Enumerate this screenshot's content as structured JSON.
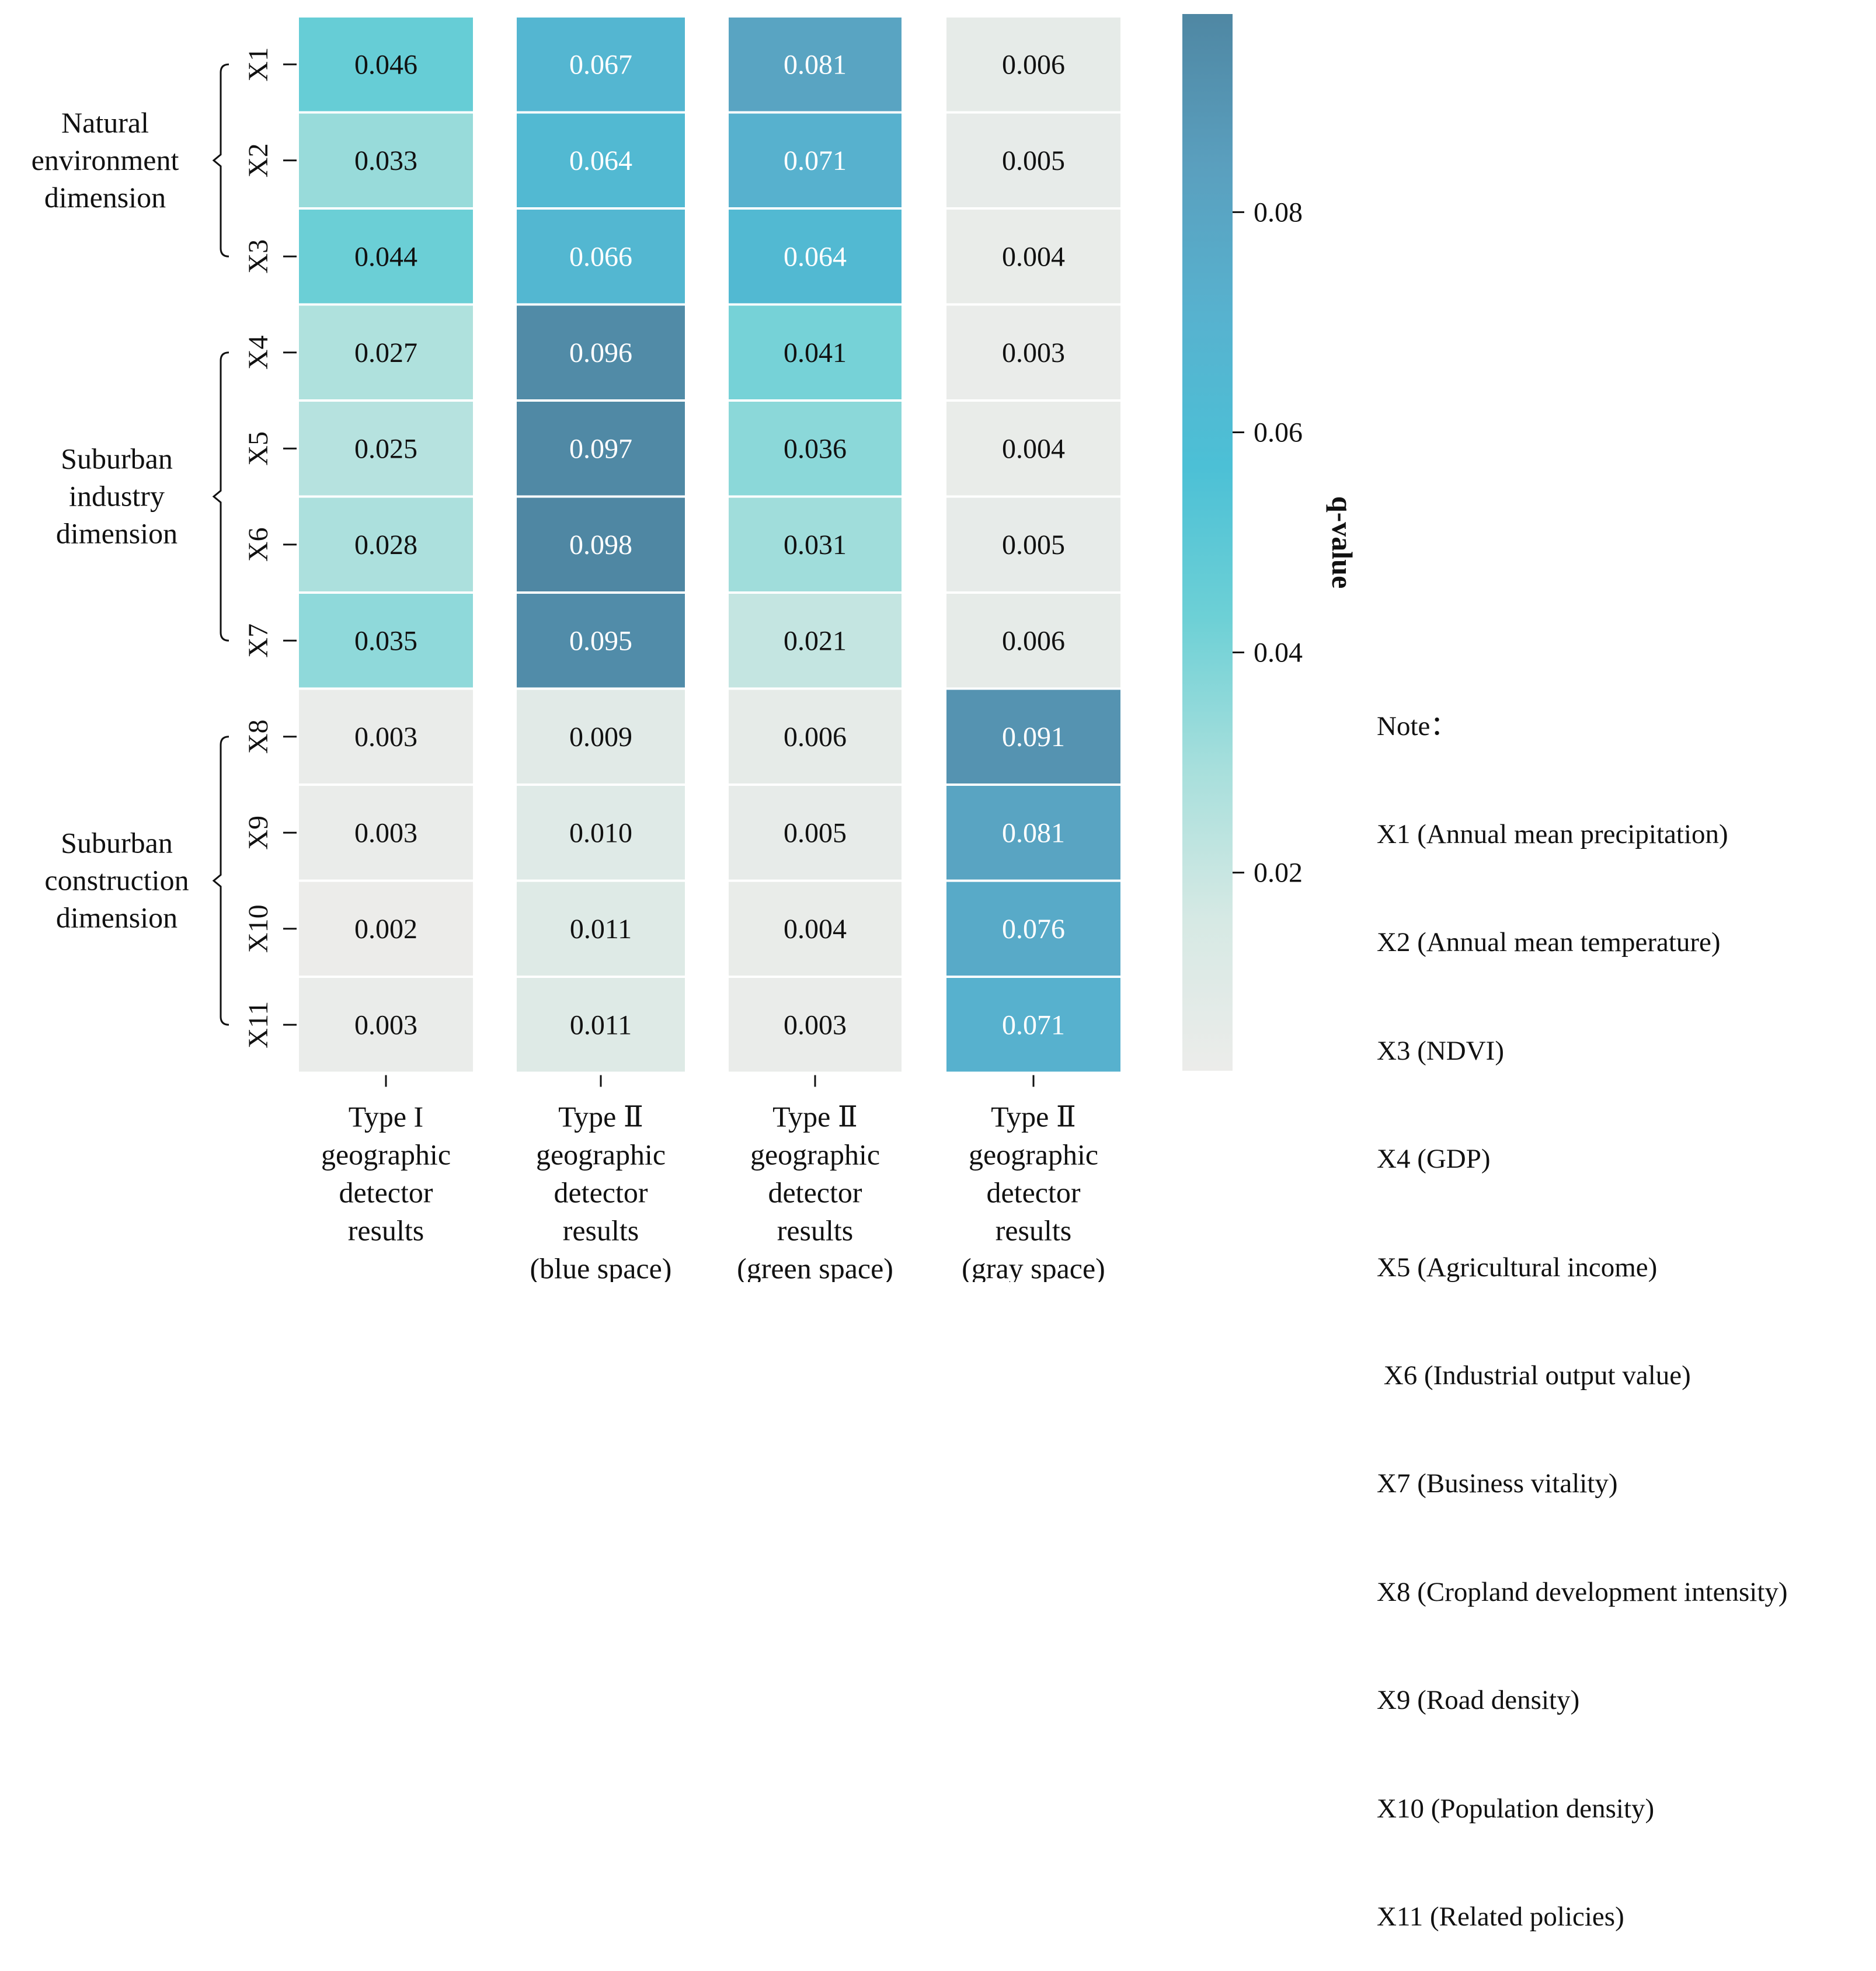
{
  "chart_data": {
    "type": "heatmap",
    "rows": [
      "X1",
      "X2",
      "X3",
      "X4",
      "X5",
      "X6",
      "X7",
      "X8",
      "X9",
      "X10",
      "X11"
    ],
    "columns": [
      [
        "Type I",
        "geographic",
        "detector",
        "results"
      ],
      [
        "Type Ⅱ",
        "geographic",
        "detector",
        "results",
        "(blue space)"
      ],
      [
        "Type Ⅱ",
        "geographic",
        "detector",
        "results",
        "(green space)"
      ],
      [
        "Type Ⅱ",
        "geographic",
        "detector",
        "results",
        "(gray space)"
      ]
    ],
    "values": [
      [
        0.046,
        0.067,
        0.081,
        0.006
      ],
      [
        0.033,
        0.064,
        0.071,
        0.005
      ],
      [
        0.044,
        0.066,
        0.064,
        0.004
      ],
      [
        0.027,
        0.096,
        0.041,
        0.003
      ],
      [
        0.025,
        0.097,
        0.036,
        0.004
      ],
      [
        0.028,
        0.098,
        0.031,
        0.005
      ],
      [
        0.035,
        0.095,
        0.021,
        0.006
      ],
      [
        0.003,
        0.009,
        0.006,
        0.091
      ],
      [
        0.003,
        0.01,
        0.005,
        0.081
      ],
      [
        0.002,
        0.011,
        0.004,
        0.076
      ],
      [
        0.003,
        0.011,
        0.003,
        0.071
      ]
    ],
    "labels": [
      [
        "0.046",
        "0.067",
        "0.081",
        "0.006"
      ],
      [
        "0.033",
        "0.064",
        "0.071",
        "0.005"
      ],
      [
        "0.044",
        "0.066",
        "0.064",
        "0.004"
      ],
      [
        "0.027",
        "0.096",
        "0.041",
        "0.003"
      ],
      [
        "0.025",
        "0.097",
        "0.036",
        "0.004"
      ],
      [
        "0.028",
        "0.098",
        "0.031",
        "0.005"
      ],
      [
        "0.035",
        "0.095",
        "0.021",
        "0.006"
      ],
      [
        "0.003",
        "0.009",
        "0.006",
        "0.091"
      ],
      [
        "0.003",
        "0.010",
        "0.005",
        "0.081"
      ],
      [
        "0.002",
        "0.011",
        "0.004",
        "0.076"
      ],
      [
        "0.003",
        "0.011",
        "0.003",
        "0.071"
      ]
    ],
    "groups": [
      {
        "label": [
          "Natural",
          "environment",
          "dimension"
        ],
        "first_row": 0,
        "last_row": 2
      },
      {
        "label": [
          "Suburban",
          "industry",
          "dimension"
        ],
        "first_row": 3,
        "last_row": 6
      },
      {
        "label": [
          "Suburban",
          "construction",
          "dimension"
        ],
        "first_row": 7,
        "last_row": 10
      }
    ],
    "colorbar": {
      "title": "q-value",
      "range": [
        0.002,
        0.098
      ],
      "ticks": [
        0.02,
        0.04,
        0.06,
        0.08
      ],
      "tick_labels": [
        "0.02",
        "0.04",
        "0.06",
        "0.08"
      ],
      "colormap": [
        "#ececea",
        "#d6e9e4",
        "#a7dfdc",
        "#6dd0d6",
        "#4cc0d6",
        "#57b2cf",
        "#5a9fbe",
        "#4f87a3"
      ]
    }
  },
  "note": {
    "title": "Note：",
    "items": [
      "X1 (Annual mean precipitation)",
      "X2 (Annual mean temperature)",
      "X3 (NDVI)",
      "X4 (GDP)",
      "X5 (Agricultural income)",
      " X6 (Industrial output value)",
      "X7 (Business vitality)",
      "X8 (Cropland development intensity)",
      "X9 (Road density)",
      "X10 (Population density)",
      "X11 (Related policies)"
    ]
  }
}
